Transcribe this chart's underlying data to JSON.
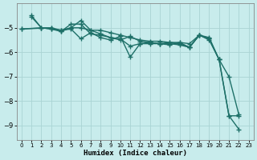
{
  "xlabel": "Humidex (Indice chaleur)",
  "bg_color": "#c8ecec",
  "grid_color": "#aad4d4",
  "line_color": "#1e7068",
  "marker": "+",
  "markersize": 4,
  "linewidth": 1.0,
  "xlim": [
    -0.5,
    23.5
  ],
  "ylim": [
    -9.6,
    -4.0
  ],
  "yticks": [
    -9,
    -8,
    -7,
    -6,
    -5
  ],
  "xticks": [
    0,
    1,
    2,
    3,
    4,
    5,
    6,
    7,
    8,
    9,
    10,
    11,
    12,
    13,
    14,
    15,
    16,
    17,
    18,
    19,
    20,
    21,
    22,
    23
  ],
  "lines": [
    [
      null,
      -4.55,
      -5.0,
      -5.05,
      -5.15,
      -4.85,
      -4.85,
      -5.25,
      -5.3,
      -5.4,
      -5.45,
      -5.75,
      -5.65,
      -5.65,
      -5.65,
      -5.6,
      -5.65,
      -5.8,
      -5.3,
      -5.4,
      -6.3,
      -8.6,
      -8.6,
      null
    ],
    [
      null,
      -4.5,
      -5.0,
      -5.05,
      -5.1,
      -5.0,
      -5.0,
      -5.1,
      -5.1,
      -5.2,
      -5.3,
      -5.4,
      -5.5,
      -5.55,
      -5.55,
      -5.6,
      -5.6,
      -5.65,
      -5.3,
      -5.45,
      -6.3,
      -7.0,
      -8.55,
      null
    ],
    [
      -5.05,
      null,
      -5.0,
      -5.0,
      -5.1,
      -5.05,
      -5.45,
      -5.2,
      -5.4,
      -5.5,
      -5.35,
      -6.2,
      -5.65,
      -5.6,
      -5.65,
      -5.7,
      -5.6,
      -5.8,
      -5.3,
      -5.45,
      null,
      null,
      null,
      null
    ],
    [
      -5.05,
      null,
      null,
      -5.0,
      -5.15,
      -5.0,
      -4.7,
      -5.1,
      -5.25,
      -5.4,
      -5.5,
      -5.35,
      -5.55,
      -5.6,
      -5.65,
      -5.65,
      -5.7,
      -5.8,
      -5.3,
      -5.5,
      -6.3,
      -8.6,
      -9.15,
      null
    ]
  ]
}
